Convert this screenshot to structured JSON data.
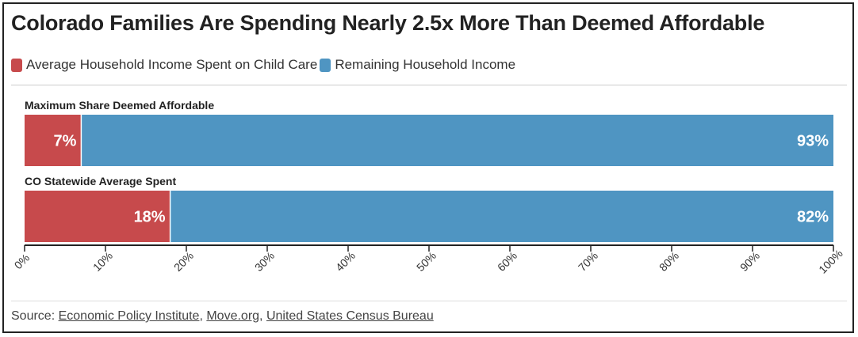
{
  "colors": {
    "child_care": "#c74a4c",
    "remaining": "#4f95c2"
  },
  "chart_data": {
    "type": "bar",
    "orientation": "horizontal",
    "stacked": true,
    "title": "Colorado Families Are Spending Nearly 2.5x More Than Deemed Affordable",
    "categories": [
      "Maximum Share Deemed Affordable",
      "CO Statewide Average Spent"
    ],
    "series": [
      {
        "name": "Average Household Income Spent on Child Care",
        "values": [
          7,
          18
        ],
        "labels": [
          "7%",
          "18%"
        ]
      },
      {
        "name": "Remaining Household Income",
        "values": [
          93,
          82
        ],
        "labels": [
          "93%",
          "82%"
        ]
      }
    ],
    "xlim": [
      0,
      100
    ],
    "x_ticks": [
      0,
      10,
      20,
      30,
      40,
      50,
      60,
      70,
      80,
      90,
      100
    ],
    "x_tick_labels": [
      "0%",
      "10%",
      "20%",
      "30%",
      "40%",
      "50%",
      "60%",
      "70%",
      "80%",
      "90%",
      "100%"
    ],
    "legend_position": "top-left"
  },
  "source": {
    "prefix": "Source: ",
    "links": [
      "Economic Policy Institute",
      "Move.org",
      "United States Census Bureau"
    ],
    "separator": ", "
  }
}
